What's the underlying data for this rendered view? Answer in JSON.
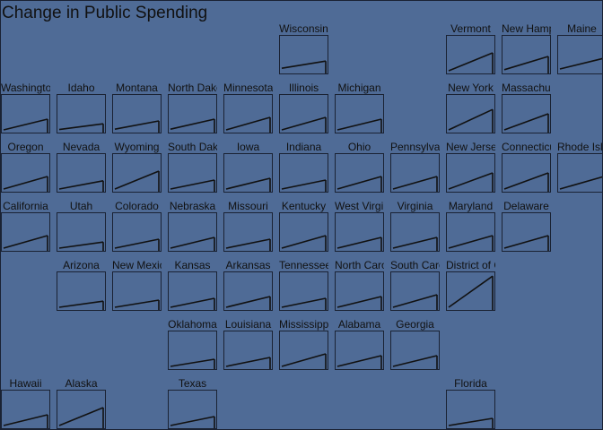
{
  "chart_data": {
    "type": "line",
    "title": "Change in Public Spending",
    "xlabel": "",
    "ylabel": "",
    "grid": false,
    "layout": "state tile grid map (small multiples)",
    "ylim": [
      0,
      1
    ],
    "series": [
      {
        "name": "Wisconsin",
        "row": 0,
        "col": 5,
        "values": [
          0.12,
          0.32
        ]
      },
      {
        "name": "Vermont",
        "row": 0,
        "col": 8,
        "values": [
          0.05,
          0.55
        ]
      },
      {
        "name": "New Hampshire",
        "row": 0,
        "col": 9,
        "values": [
          0.08,
          0.45
        ]
      },
      {
        "name": "Maine",
        "row": 0,
        "col": 10,
        "values": [
          0.1,
          0.4
        ]
      },
      {
        "name": "Washington",
        "row": 1,
        "col": 0,
        "values": [
          0.05,
          0.35
        ]
      },
      {
        "name": "Idaho",
        "row": 1,
        "col": 1,
        "values": [
          0.06,
          0.22
        ]
      },
      {
        "name": "Montana",
        "row": 1,
        "col": 2,
        "values": [
          0.07,
          0.3
        ]
      },
      {
        "name": "North Dakota",
        "row": 1,
        "col": 3,
        "values": [
          0.07,
          0.35
        ]
      },
      {
        "name": "Minnesota",
        "row": 1,
        "col": 4,
        "values": [
          0.05,
          0.4
        ]
      },
      {
        "name": "Illinois",
        "row": 1,
        "col": 5,
        "values": [
          0.05,
          0.4
        ]
      },
      {
        "name": "Michigan",
        "row": 1,
        "col": 6,
        "values": [
          0.05,
          0.35
        ]
      },
      {
        "name": "New York",
        "row": 1,
        "col": 8,
        "values": [
          0.05,
          0.62
        ]
      },
      {
        "name": "Massachusetts",
        "row": 1,
        "col": 9,
        "values": [
          0.05,
          0.5
        ]
      },
      {
        "name": "Oregon",
        "row": 2,
        "col": 0,
        "values": [
          0.05,
          0.4
        ]
      },
      {
        "name": "Nevada",
        "row": 2,
        "col": 1,
        "values": [
          0.05,
          0.28
        ]
      },
      {
        "name": "Wyoming",
        "row": 2,
        "col": 2,
        "values": [
          0.05,
          0.55
        ]
      },
      {
        "name": "South Dakota",
        "row": 2,
        "col": 3,
        "values": [
          0.05,
          0.3
        ]
      },
      {
        "name": "Iowa",
        "row": 2,
        "col": 4,
        "values": [
          0.05,
          0.35
        ]
      },
      {
        "name": "Indiana",
        "row": 2,
        "col": 5,
        "values": [
          0.05,
          0.3
        ]
      },
      {
        "name": "Ohio",
        "row": 2,
        "col": 6,
        "values": [
          0.05,
          0.4
        ]
      },
      {
        "name": "Pennsylvania",
        "row": 2,
        "col": 7,
        "values": [
          0.05,
          0.4
        ]
      },
      {
        "name": "New Jersey",
        "row": 2,
        "col": 8,
        "values": [
          0.05,
          0.5
        ]
      },
      {
        "name": "Connecticut",
        "row": 2,
        "col": 9,
        "values": [
          0.05,
          0.5
        ]
      },
      {
        "name": "Rhode Island",
        "row": 2,
        "col": 10,
        "values": [
          0.05,
          0.4
        ]
      },
      {
        "name": "California",
        "row": 3,
        "col": 0,
        "values": [
          0.05,
          0.4
        ]
      },
      {
        "name": "Utah",
        "row": 3,
        "col": 1,
        "values": [
          0.05,
          0.22
        ]
      },
      {
        "name": "Colorado",
        "row": 3,
        "col": 2,
        "values": [
          0.05,
          0.3
        ]
      },
      {
        "name": "Nebraska",
        "row": 3,
        "col": 3,
        "values": [
          0.05,
          0.35
        ]
      },
      {
        "name": "Missouri",
        "row": 3,
        "col": 4,
        "values": [
          0.05,
          0.3
        ]
      },
      {
        "name": "Kentucky",
        "row": 3,
        "col": 5,
        "values": [
          0.05,
          0.4
        ]
      },
      {
        "name": "West Virginia",
        "row": 3,
        "col": 6,
        "values": [
          0.05,
          0.35
        ]
      },
      {
        "name": "Virginia",
        "row": 3,
        "col": 7,
        "values": [
          0.05,
          0.35
        ]
      },
      {
        "name": "Maryland",
        "row": 3,
        "col": 8,
        "values": [
          0.05,
          0.4
        ]
      },
      {
        "name": "Delaware",
        "row": 3,
        "col": 9,
        "values": [
          0.05,
          0.4
        ]
      },
      {
        "name": "Arizona",
        "row": 4,
        "col": 1,
        "values": [
          0.05,
          0.22
        ]
      },
      {
        "name": "New Mexico",
        "row": 4,
        "col": 2,
        "values": [
          0.05,
          0.25
        ]
      },
      {
        "name": "Kansas",
        "row": 4,
        "col": 3,
        "values": [
          0.05,
          0.3
        ]
      },
      {
        "name": "Arkansas",
        "row": 4,
        "col": 4,
        "values": [
          0.05,
          0.35
        ]
      },
      {
        "name": "Tennessee",
        "row": 4,
        "col": 5,
        "values": [
          0.05,
          0.3
        ]
      },
      {
        "name": "North Carolina",
        "row": 4,
        "col": 6,
        "values": [
          0.05,
          0.35
        ]
      },
      {
        "name": "South Carolina",
        "row": 4,
        "col": 7,
        "values": [
          0.05,
          0.4
        ]
      },
      {
        "name": "District of Columbia",
        "row": 4,
        "col": 8,
        "values": [
          0.05,
          0.92
        ]
      },
      {
        "name": "Oklahoma",
        "row": 5,
        "col": 3,
        "values": [
          0.05,
          0.25
        ]
      },
      {
        "name": "Louisiana",
        "row": 5,
        "col": 4,
        "values": [
          0.05,
          0.3
        ]
      },
      {
        "name": "Mississippi",
        "row": 5,
        "col": 5,
        "values": [
          0.05,
          0.4
        ]
      },
      {
        "name": "Alabama",
        "row": 5,
        "col": 6,
        "values": [
          0.05,
          0.35
        ]
      },
      {
        "name": "Georgia",
        "row": 5,
        "col": 7,
        "values": [
          0.05,
          0.35
        ]
      },
      {
        "name": "Hawaii",
        "row": 6,
        "col": 0,
        "values": [
          0.05,
          0.35
        ]
      },
      {
        "name": "Alaska",
        "row": 6,
        "col": 1,
        "values": [
          0.05,
          0.55
        ]
      },
      {
        "name": "Texas",
        "row": 6,
        "col": 3,
        "values": [
          0.05,
          0.3
        ]
      },
      {
        "name": "Florida",
        "row": 6,
        "col": 8,
        "values": [
          0.05,
          0.25
        ]
      }
    ]
  }
}
